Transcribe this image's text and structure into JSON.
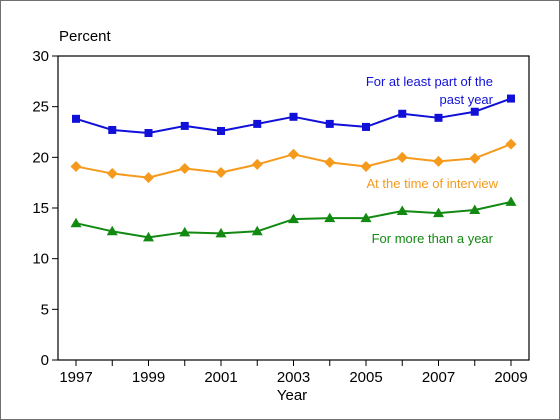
{
  "chart_data": {
    "type": "line",
    "title": "",
    "ylabel": "Percent",
    "xlabel": "Year",
    "ylim": [
      0,
      30
    ],
    "y_ticks": [
      0,
      5,
      10,
      15,
      20,
      25,
      30
    ],
    "xlim": [
      1997,
      2009
    ],
    "x_tick_labels": [
      "1997",
      "1999",
      "2001",
      "2003",
      "2005",
      "2007",
      "2009"
    ],
    "x": [
      1997,
      1998,
      1999,
      2000,
      2001,
      2002,
      2003,
      2004,
      2005,
      2006,
      2007,
      2008,
      2009
    ],
    "grid": false,
    "series": [
      {
        "name": "For at least part of the past year",
        "label_lines": [
          "For at least part of the",
          "past year"
        ],
        "color": "#1010d8",
        "marker": "square",
        "values": [
          23.8,
          22.7,
          22.4,
          23.1,
          22.6,
          23.3,
          24.0,
          23.3,
          23.0,
          24.3,
          23.9,
          24.5,
          25.8
        ]
      },
      {
        "name": "At the time of interview",
        "label_lines": [
          "At the time of interview"
        ],
        "color": "#f59a1c",
        "marker": "diamond",
        "values": [
          19.1,
          18.4,
          18.0,
          18.9,
          18.5,
          19.3,
          20.3,
          19.5,
          19.1,
          20.0,
          19.6,
          19.9,
          21.3
        ]
      },
      {
        "name": "For more than a year",
        "label_lines": [
          "For more than a year"
        ],
        "color": "#128a12",
        "marker": "triangle",
        "values": [
          13.5,
          12.7,
          12.1,
          12.6,
          12.5,
          12.7,
          13.9,
          14.0,
          14.0,
          14.7,
          14.5,
          14.8,
          15.6
        ]
      }
    ]
  }
}
